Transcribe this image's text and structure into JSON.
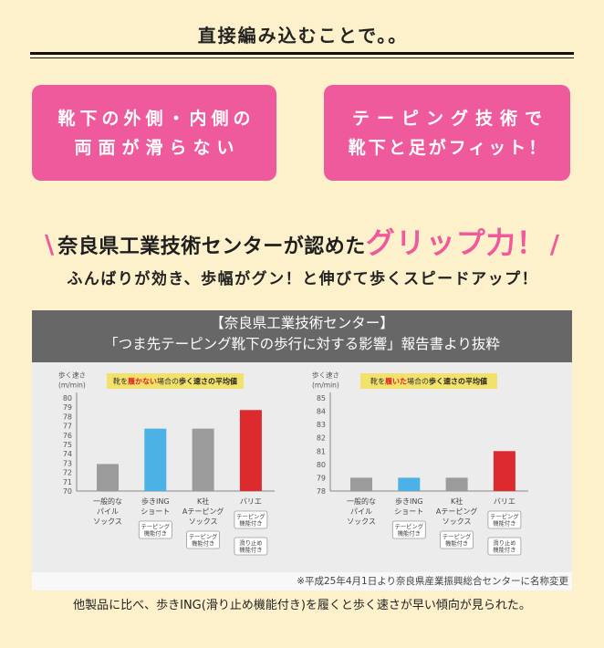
{
  "colors": {
    "background": "#fdf1cb",
    "pink": "#ee5a9b",
    "text": "#222222",
    "panel_header": "#676767",
    "panel_body": "#ececec",
    "footnote_strip": "#f8f8f8",
    "title_box": "#f2e26b",
    "negation_red": "#e02424"
  },
  "intro": {
    "title": "直接編み込むことで。。"
  },
  "features": [
    {
      "lines": [
        "靴下の外側・内側の",
        "両面が滑らない"
      ]
    },
    {
      "lines": [
        "テーピング技術で",
        "靴下と足がフィット！"
      ]
    }
  ],
  "headline": {
    "open_slash": "\\",
    "text": "奈良県工業技術センターが認めた",
    "highlight": "グリップ力！",
    "close_slash": "/"
  },
  "subheadline": "ふんばりが効き、歩幅がグン！と伸びて歩くスピードアップ！",
  "report": {
    "header_line1": "【奈良県工業技術センター】",
    "header_line2": "「つま先テーピング靴下の歩行に対する影響」報告書より抜粋",
    "footnote": "※平成25年4月1日より奈良県産業振興総合センターに名称変更"
  },
  "conclusion": "他製品に比べ、歩きING(滑り止め機能付き)を履くと歩く速さが早い傾向が見られた。",
  "chart_data": [
    {
      "type": "bar",
      "title_parts": [
        "靴を",
        "履かない",
        "場合の",
        "歩く速さの平均値"
      ],
      "ylabel": [
        "歩く速さ",
        "(m/min)"
      ],
      "ylim": [
        70,
        80
      ],
      "yticks": [
        80,
        79,
        78,
        77,
        76,
        75,
        74,
        73,
        72,
        71,
        70
      ],
      "categories": [
        [
          "一般的な",
          "パイル",
          "ソックス"
        ],
        [
          "歩きING",
          "ショート"
        ],
        [
          "K社",
          "Aテーピング",
          "ソックス"
        ],
        [
          "バリエ"
        ]
      ],
      "values": [
        72.9,
        76.7,
        76.7,
        78.7
      ],
      "bar_colors": [
        "#9b9b9b",
        "#4cb2e6",
        "#9b9b9b",
        "#dd2a2f"
      ],
      "feature_tags": [
        [],
        [
          [
            "テーピング",
            "機能付き"
          ]
        ],
        [
          [
            "テーピング",
            "機能付き"
          ]
        ],
        [
          [
            "テーピング",
            "機能付き"
          ],
          [
            "滑り止め",
            "機能付き"
          ]
        ]
      ],
      "grid": false,
      "legend": "none"
    },
    {
      "type": "bar",
      "title_parts": [
        "靴を",
        "履いた",
        "場合の",
        "歩く速さの平均値"
      ],
      "ylabel": [
        "歩く速さ",
        "(m/min)"
      ],
      "ylim": [
        78,
        85
      ],
      "yticks": [
        85,
        84,
        83,
        82,
        81,
        80,
        79,
        78
      ],
      "categories": [
        [
          "一般的な",
          "パイル",
          "ソックス"
        ],
        [
          "歩きING",
          "ショート"
        ],
        [
          "K社",
          "Aテーピング",
          "ソックス"
        ],
        [
          "バリエ"
        ]
      ],
      "values": [
        79.0,
        79.0,
        79.0,
        81.0
      ],
      "bar_colors": [
        "#9b9b9b",
        "#4cb2e6",
        "#9b9b9b",
        "#dd2a2f"
      ],
      "feature_tags": [
        [],
        [
          [
            "テーピング",
            "機能付き"
          ]
        ],
        [
          [
            "テーピング",
            "機能付き"
          ]
        ],
        [
          [
            "テーピング",
            "機能付き"
          ],
          [
            "滑り止め",
            "機能付き"
          ]
        ]
      ],
      "grid": false,
      "legend": "none"
    }
  ]
}
